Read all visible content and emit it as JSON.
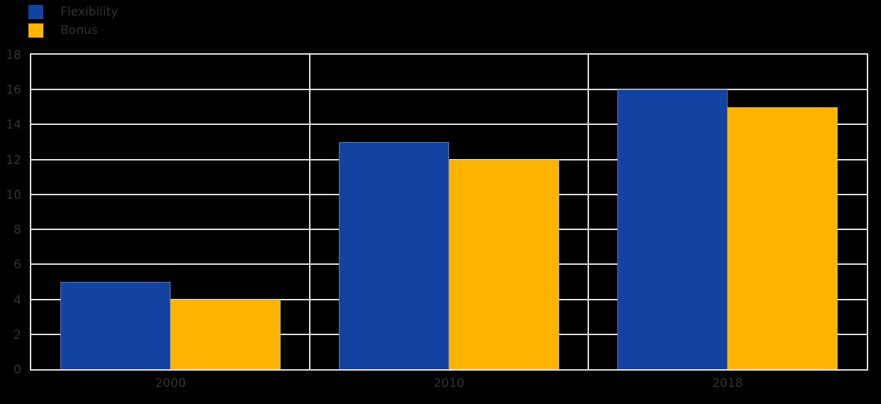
{
  "legend": {
    "position": "top-left",
    "items": [
      {
        "label": "Flexibility",
        "color": "#1243A2"
      },
      {
        "label": "Bonus",
        "color": "#FFB400"
      }
    ]
  },
  "chart_data": {
    "type": "bar",
    "title": "",
    "xlabel": "",
    "ylabel": "",
    "categories": [
      "2000",
      "2010",
      "2018"
    ],
    "series": [
      {
        "name": "Flexibility",
        "color": "#1243A2",
        "values": [
          5,
          13,
          16
        ]
      },
      {
        "name": "Bonus",
        "color": "#FFB400",
        "values": [
          4,
          12,
          15
        ]
      }
    ],
    "ylim": [
      0,
      18
    ],
    "ytick_step": 2,
    "grid": "horizontal-and-group-separators",
    "legend_position": "top-left"
  },
  "colors": {
    "background": "#000000",
    "grid": "#e3e3e3",
    "text": "#323232"
  }
}
